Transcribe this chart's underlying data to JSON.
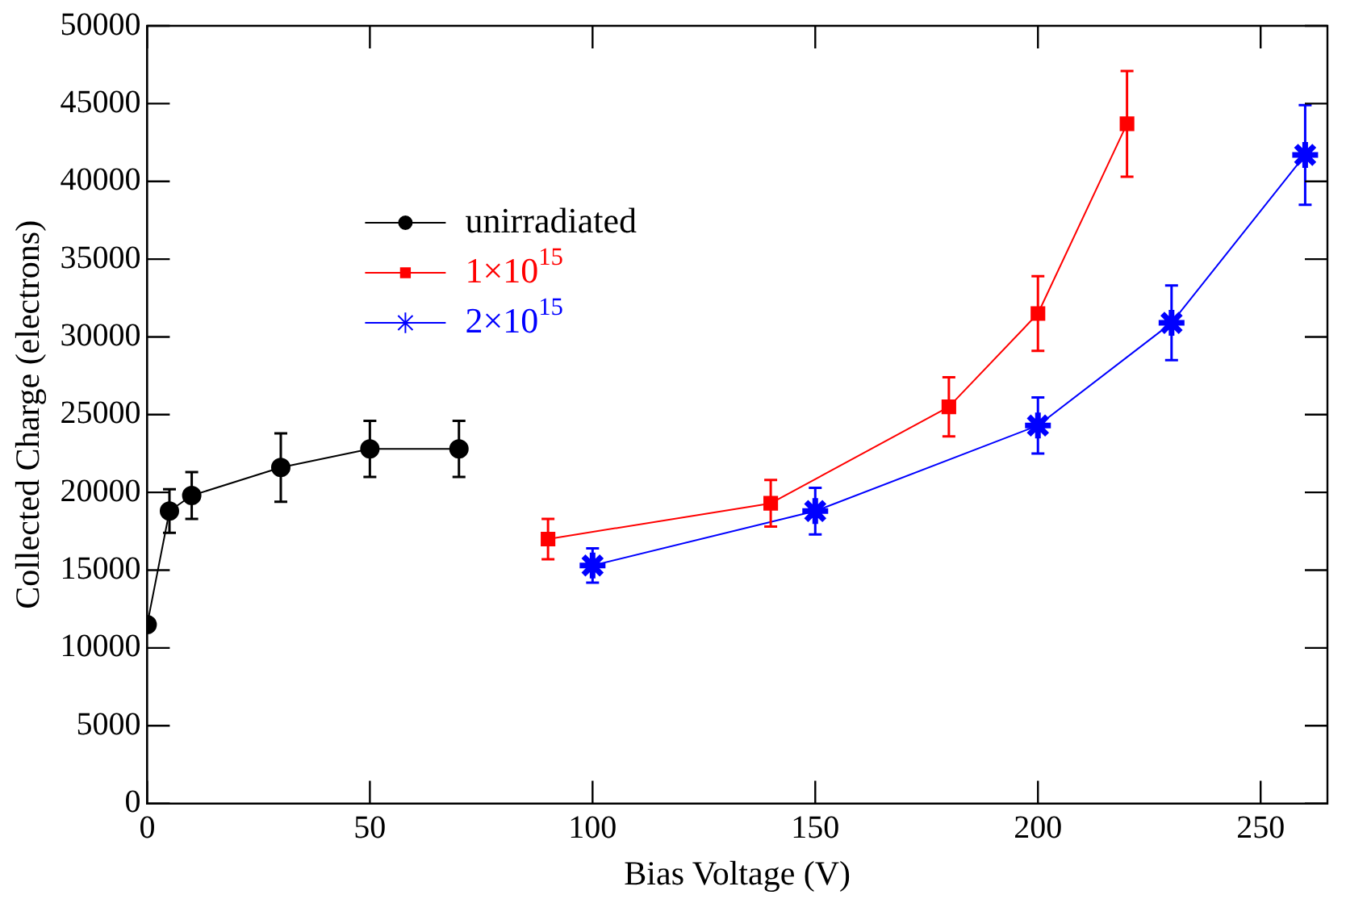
{
  "chart_data": {
    "type": "line",
    "xlabel": "Bias Voltage (V)",
    "ylabel": "Collected Charge (electrons)",
    "xlim": [
      0,
      265
    ],
    "xticks": [
      0,
      50,
      100,
      150,
      200,
      250
    ],
    "ylim": [
      0,
      50000
    ],
    "yticks": [
      0,
      5000,
      10000,
      15000,
      20000,
      25000,
      30000,
      35000,
      40000,
      45000,
      50000
    ],
    "grid": false,
    "legend": "top left",
    "series": [
      {
        "name": "unirradiated",
        "color": "#000000",
        "marker": "circle",
        "x": [
          0,
          5,
          10,
          30,
          50,
          70
        ],
        "values": [
          11500,
          18800,
          19800,
          21600,
          22800,
          22800
        ],
        "errors": [
          null,
          1400,
          1500,
          2200,
          1800,
          1800
        ]
      },
      {
        "name": "1×10$^{15}$",
        "color": "#ff0000",
        "marker": "square",
        "x": [
          90,
          140,
          180,
          200,
          220
        ],
        "values": [
          17000,
          19300,
          25500,
          31500,
          43700
        ],
        "errors": [
          1300,
          1500,
          1900,
          2400,
          3400
        ]
      },
      {
        "name": "2×10$^{15}$",
        "color": "#0000ff",
        "marker": "cross",
        "x": [
          100,
          150,
          200,
          230,
          260
        ],
        "values": [
          15300,
          18800,
          24300,
          30900,
          41700
        ],
        "errors": [
          1100,
          1500,
          1800,
          2400,
          3200
        ]
      }
    ]
  }
}
